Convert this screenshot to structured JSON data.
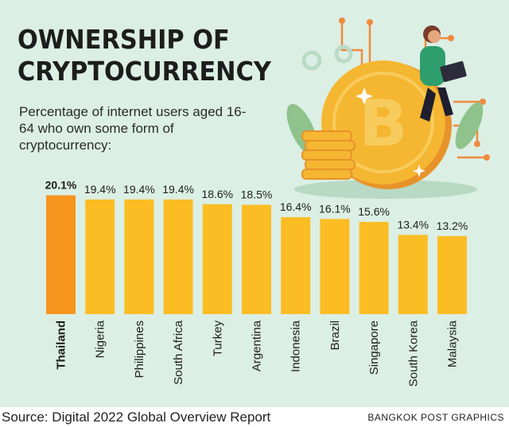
{
  "header": {
    "title": "OWNERSHIP OF\nCRYPTOCURRENCY",
    "subtitle": "Percentage of internet users aged 16-64 who own some form of cryptocurrency:"
  },
  "chart_data": {
    "type": "bar",
    "categories": [
      "Thailand",
      "Nigeria",
      "Philippines",
      "South Africa",
      "Turkey",
      "Argentina",
      "Indonesia",
      "Brazil",
      "Singapore",
      "South Korea",
      "Malaysia"
    ],
    "values": [
      20.1,
      19.4,
      19.4,
      19.4,
      18.6,
      18.5,
      16.4,
      16.1,
      15.6,
      13.4,
      13.2
    ],
    "value_labels": [
      "20.1%",
      "19.4%",
      "19.4%",
      "19.4%",
      "18.6%",
      "18.5%",
      "16.4%",
      "16.1%",
      "15.6%",
      "13.4%",
      "13.2%"
    ],
    "highlight_index": 0,
    "colors": {
      "highlight": "#f7941d",
      "bar": "#fbbd23",
      "text": "#1d1d1d"
    },
    "grid": false
  },
  "footer": {
    "source": "Source: Digital 2022 Global Overview Report",
    "credit": "BANGKOK POST GRAPHICS"
  },
  "illustration": {
    "icon": "bitcoin-coin-with-person-on-laptop-icon",
    "colors": {
      "coin": "#f5b731",
      "coin_dark": "#e8922a",
      "leaf": "#8fc28c",
      "circuit": "#f08a3e",
      "shirt": "#2e9e6c"
    }
  }
}
